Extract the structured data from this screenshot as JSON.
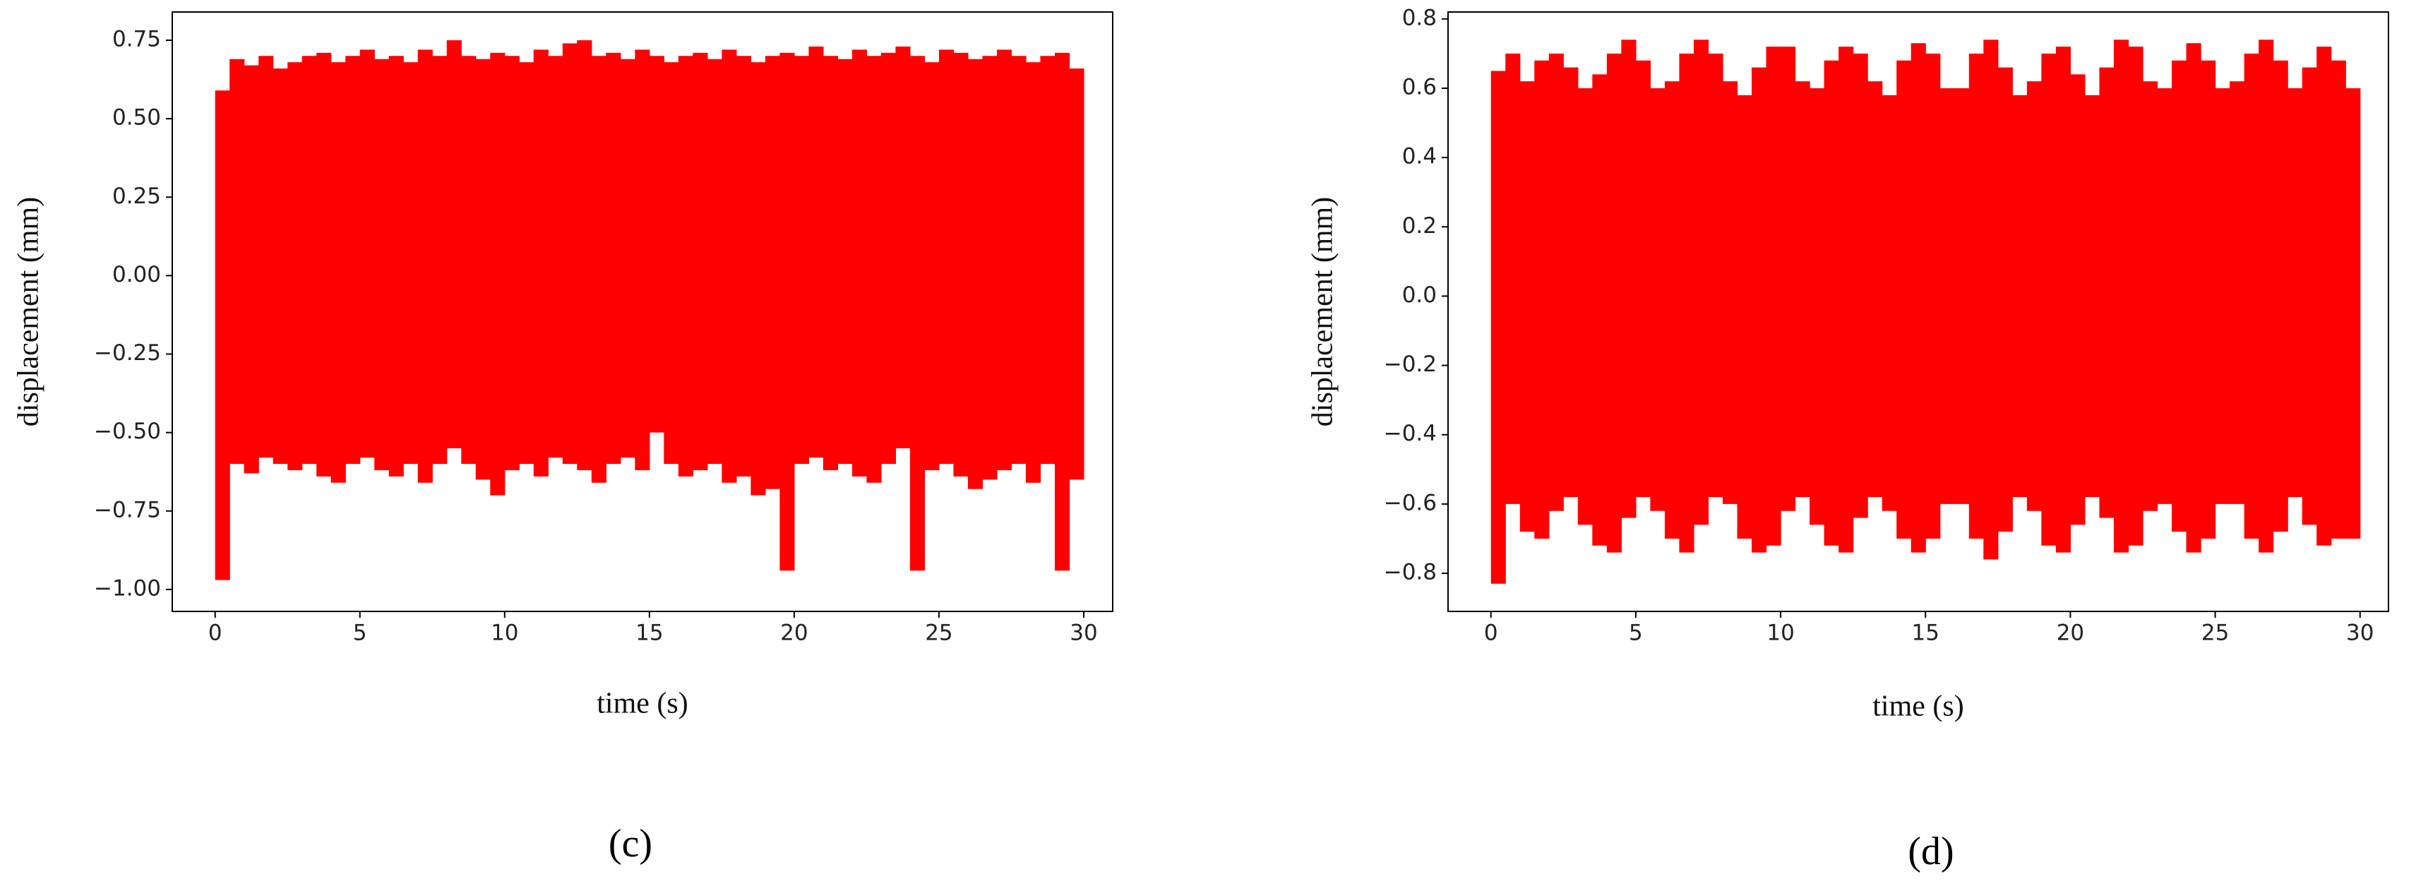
{
  "chart_data": [
    {
      "type": "band",
      "panel_label": "(c)",
      "xlabel": "time (s)",
      "ylabel": "displacement (mm)",
      "color": "#ff0000",
      "xlim": [
        -1.48,
        31.0
      ],
      "ylim": [
        -1.07,
        0.84
      ],
      "xticks": [
        0,
        5,
        10,
        15,
        20,
        25,
        30
      ],
      "yticks": [
        {
          "value": 0.75,
          "label": "0.75"
        },
        {
          "value": 0.5,
          "label": "0.50"
        },
        {
          "value": 0.25,
          "label": "0.25"
        },
        {
          "value": 0,
          "label": "0.00"
        },
        {
          "value": -0.25,
          "label": "−0.25"
        },
        {
          "value": -0.5,
          "label": "−0.50"
        },
        {
          "value": -0.75,
          "label": "−0.75"
        },
        {
          "value": -1,
          "label": "−1.00"
        }
      ],
      "x": [
        0,
        0.5,
        1,
        1.5,
        2,
        2.5,
        3,
        3.5,
        4,
        4.5,
        5,
        5.5,
        6,
        6.5,
        7,
        7.5,
        8,
        8.5,
        9,
        9.5,
        10,
        10.5,
        11,
        11.5,
        12,
        12.5,
        13,
        13.5,
        14,
        14.5,
        15,
        15.5,
        16,
        16.5,
        17,
        17.5,
        18,
        18.5,
        19,
        19.5,
        20,
        20.5,
        21,
        21.5,
        22,
        22.5,
        23,
        23.5,
        24,
        24.5,
        25,
        25.5,
        26,
        26.5,
        27,
        27.5,
        28,
        28.5,
        29,
        29.5
      ],
      "upper": [
        0.59,
        0.69,
        0.67,
        0.7,
        0.66,
        0.68,
        0.7,
        0.71,
        0.68,
        0.7,
        0.72,
        0.69,
        0.7,
        0.68,
        0.72,
        0.7,
        0.75,
        0.7,
        0.69,
        0.71,
        0.7,
        0.68,
        0.72,
        0.7,
        0.74,
        0.75,
        0.7,
        0.71,
        0.69,
        0.72,
        0.7,
        0.68,
        0.7,
        0.71,
        0.69,
        0.72,
        0.7,
        0.68,
        0.7,
        0.71,
        0.7,
        0.73,
        0.7,
        0.69,
        0.72,
        0.7,
        0.71,
        0.73,
        0.7,
        0.68,
        0.72,
        0.71,
        0.69,
        0.7,
        0.72,
        0.7,
        0.68,
        0.7,
        0.71,
        0.66
      ],
      "lower": [
        -0.97,
        -0.6,
        -0.63,
        -0.58,
        -0.6,
        -0.62,
        -0.6,
        -0.64,
        -0.66,
        -0.6,
        -0.58,
        -0.62,
        -0.64,
        -0.6,
        -0.66,
        -0.6,
        -0.55,
        -0.6,
        -0.65,
        -0.7,
        -0.62,
        -0.6,
        -0.64,
        -0.58,
        -0.6,
        -0.62,
        -0.66,
        -0.6,
        -0.58,
        -0.62,
        -0.5,
        -0.6,
        -0.64,
        -0.62,
        -0.6,
        -0.66,
        -0.64,
        -0.7,
        -0.68,
        -0.94,
        -0.6,
        -0.58,
        -0.62,
        -0.6,
        -0.64,
        -0.66,
        -0.6,
        -0.55,
        -0.94,
        -0.62,
        -0.6,
        -0.64,
        -0.68,
        -0.65,
        -0.62,
        -0.6,
        -0.66,
        -0.6,
        -0.94,
        -0.65
      ]
    },
    {
      "type": "band",
      "panel_label": "(d)",
      "xlabel": "time (s)",
      "ylabel": "displacement (mm)",
      "color": "#ff0000",
      "xlim": [
        -1.48,
        30.98
      ],
      "ylim": [
        -0.91,
        0.82
      ],
      "xticks": [
        0,
        5,
        10,
        15,
        20,
        25,
        30
      ],
      "yticks": [
        0.8,
        0.6,
        0.4,
        0.2,
        {
          "value": 0,
          "label": "0.0"
        },
        {
          "value": -0.2,
          "label": "−0.2"
        },
        {
          "value": -0.4,
          "label": "−0.4"
        },
        {
          "value": -0.6,
          "label": "−0.6"
        },
        {
          "value": -0.8,
          "label": "−0.8"
        }
      ],
      "x": [
        0,
        0.5,
        1,
        1.5,
        2,
        2.5,
        3,
        3.5,
        4,
        4.5,
        5,
        5.5,
        6,
        6.5,
        7,
        7.5,
        8,
        8.5,
        9,
        9.5,
        10,
        10.5,
        11,
        11.5,
        12,
        12.5,
        13,
        13.5,
        14,
        14.5,
        15,
        15.5,
        16,
        16.5,
        17,
        17.5,
        18,
        18.5,
        19,
        19.5,
        20,
        20.5,
        21,
        21.5,
        22,
        22.5,
        23,
        23.5,
        24,
        24.5,
        25,
        25.5,
        26,
        26.5,
        27,
        27.5,
        28,
        28.5,
        29,
        29.5
      ],
      "upper": [
        0.65,
        0.7,
        0.62,
        0.68,
        0.7,
        0.66,
        0.6,
        0.64,
        0.7,
        0.74,
        0.68,
        0.6,
        0.62,
        0.7,
        0.74,
        0.7,
        0.62,
        0.58,
        0.66,
        0.72,
        0.72,
        0.62,
        0.6,
        0.68,
        0.72,
        0.7,
        0.62,
        0.58,
        0.68,
        0.73,
        0.7,
        0.6,
        0.6,
        0.7,
        0.74,
        0.66,
        0.58,
        0.62,
        0.7,
        0.72,
        0.64,
        0.58,
        0.66,
        0.74,
        0.72,
        0.62,
        0.6,
        0.68,
        0.73,
        0.68,
        0.6,
        0.62,
        0.7,
        0.74,
        0.68,
        0.6,
        0.66,
        0.72,
        0.68,
        0.6
      ],
      "lower": [
        -0.83,
        -0.6,
        -0.68,
        -0.7,
        -0.62,
        -0.58,
        -0.66,
        -0.72,
        -0.74,
        -0.64,
        -0.58,
        -0.62,
        -0.7,
        -0.74,
        -0.66,
        -0.58,
        -0.6,
        -0.7,
        -0.74,
        -0.72,
        -0.62,
        -0.58,
        -0.66,
        -0.72,
        -0.74,
        -0.64,
        -0.58,
        -0.62,
        -0.7,
        -0.74,
        -0.7,
        -0.6,
        -0.6,
        -0.7,
        -0.76,
        -0.68,
        -0.58,
        -0.62,
        -0.72,
        -0.74,
        -0.66,
        -0.58,
        -0.64,
        -0.74,
        -0.72,
        -0.62,
        -0.6,
        -0.68,
        -0.74,
        -0.7,
        -0.6,
        -0.6,
        -0.7,
        -0.74,
        -0.68,
        -0.58,
        -0.66,
        -0.72,
        -0.7,
        -0.7
      ]
    }
  ]
}
